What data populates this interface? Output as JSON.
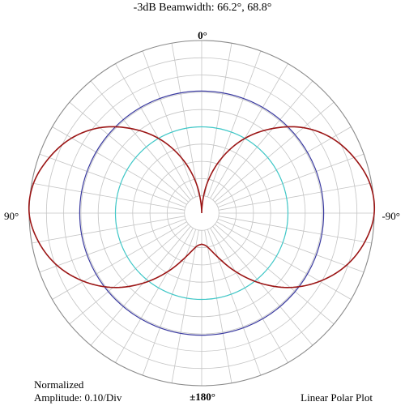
{
  "title": "-3dB Beamwidth: 66.2°, 68.8°",
  "angle_labels": {
    "top": "0°",
    "bottom": "±180°",
    "left": "90°",
    "right": "-90°"
  },
  "footer": {
    "amplitude_label": "Normalized",
    "amplitude_value": "Amplitude:  0.10/Div",
    "plot_type": "Linear Polar Plot"
  },
  "chart_data": {
    "type": "polar-line",
    "scale": "linear",
    "radial_range": [
      0,
      1.0
    ],
    "radial_step": 0.1,
    "angular_step_deg": 10,
    "angle_convention": "0° at top, +90° on the left, -90° on the right",
    "grid": true,
    "reference_circles": [
      {
        "radius": 0.707,
        "color": "#3a3aa0"
      },
      {
        "radius": 0.5,
        "color": "#40c8c8"
      }
    ],
    "series": [
      {
        "color": "#9b1515",
        "angles_deg": [
          0,
          10,
          20,
          30,
          40,
          50,
          60,
          70,
          80,
          90,
          100,
          110,
          120,
          130,
          140,
          150,
          160,
          170,
          180
        ],
        "values": [
          0.0,
          0.17,
          0.34,
          0.5,
          0.64,
          0.77,
          0.87,
          0.94,
          0.99,
          1.0,
          0.96,
          0.89,
          0.79,
          0.67,
          0.53,
          0.39,
          0.27,
          0.2,
          0.18
        ]
      }
    ]
  }
}
